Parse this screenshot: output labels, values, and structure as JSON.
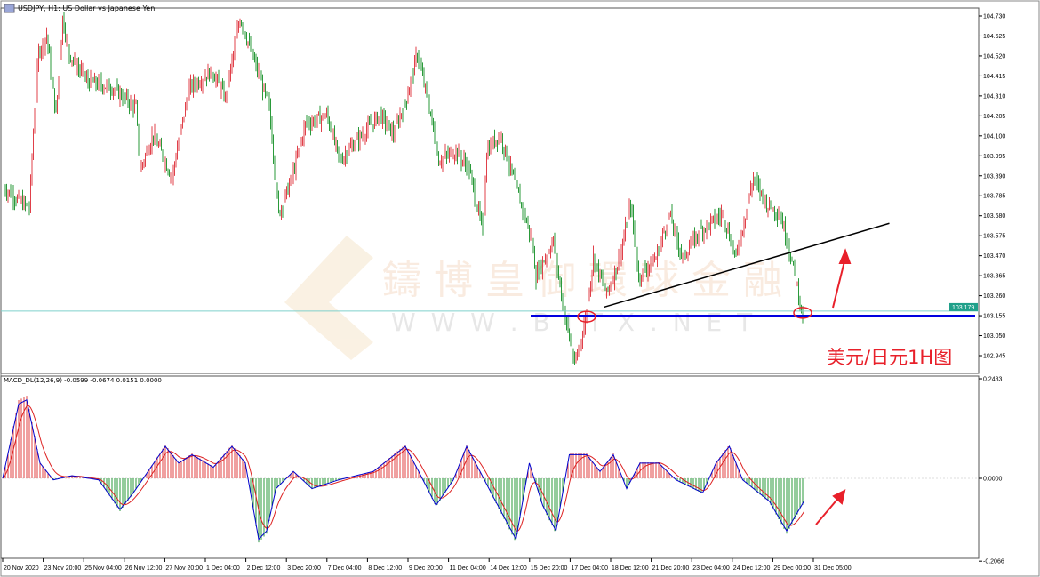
{
  "header": {
    "title": "USDJPY, H1:  US Dollar vs Japanese Yen",
    "icon": "chart-window-icon"
  },
  "watermark": {
    "text": "鑄博皇御環球金融",
    "url": "W W W . B I T X . N E T"
  },
  "annotation": {
    "text": "美元/日元1H图",
    "color": "#e8202a"
  },
  "chart_data": [
    {
      "type": "candlestick",
      "symbol": "USDJPY",
      "timeframe": "H1",
      "ylim": [
        102.89,
        104.76
      ],
      "y_ticks": [
        "104.730",
        "104.625",
        "104.520",
        "104.415",
        "104.310",
        "104.205",
        "104.100",
        "103.995",
        "103.890",
        "103.785",
        "103.680",
        "103.575",
        "103.470",
        "103.365",
        "103.260",
        "103.155",
        "103.050",
        "102.945"
      ],
      "current_price": "103.179",
      "current_price_color": "#20a08a",
      "x_ticks": [
        "20 Nov 2020",
        "23 Nov 20:00",
        "25 Nov 04:00",
        "26 Nov 12:00",
        "27 Nov 20:00",
        "1 Dec 04:00",
        "2 Dec 12:00",
        "3 Dec 20:00",
        "7 Dec 04:00",
        "8 Dec 12:00",
        "9 Dec 20:00",
        "11 Dec 04:00",
        "14 Dec 12:00",
        "15 Dec 20:00",
        "17 Dec 04:00",
        "18 Dec 12:00",
        "21 Dec 20:00",
        "23 Dec 04:00",
        "24 Dec 12:00",
        "29 Dec 00:00",
        "31 Dec 05:00"
      ],
      "up_color": "#e0404a",
      "down_color": "#2a9a3a",
      "close_path_bar_price": [
        [
          0,
          103.83
        ],
        [
          20,
          103.72
        ],
        [
          23,
          104.12
        ],
        [
          27,
          104.54
        ],
        [
          33,
          104.63
        ],
        [
          40,
          104.21
        ],
        [
          45,
          104.72
        ],
        [
          50,
          104.53
        ],
        [
          63,
          104.39
        ],
        [
          83,
          104.35
        ],
        [
          100,
          104.25
        ],
        [
          103,
          103.92
        ],
        [
          113,
          104.11
        ],
        [
          127,
          103.88
        ],
        [
          133,
          104.11
        ],
        [
          140,
          104.35
        ],
        [
          157,
          104.44
        ],
        [
          167,
          104.3
        ],
        [
          178,
          104.72
        ],
        [
          187,
          104.53
        ],
        [
          200,
          104.25
        ],
        [
          207,
          103.69
        ],
        [
          217,
          103.88
        ],
        [
          227,
          104.16
        ],
        [
          243,
          104.21
        ],
        [
          253,
          103.97
        ],
        [
          270,
          104.11
        ],
        [
          283,
          104.21
        ],
        [
          293,
          104.11
        ],
        [
          303,
          104.3
        ],
        [
          311,
          104.53
        ],
        [
          320,
          104.25
        ],
        [
          327,
          103.97
        ],
        [
          340,
          104.02
        ],
        [
          350,
          103.92
        ],
        [
          360,
          103.6
        ],
        [
          363,
          104.02
        ],
        [
          373,
          104.11
        ],
        [
          383,
          103.88
        ],
        [
          397,
          103.55
        ],
        [
          400,
          103.36
        ],
        [
          413,
          103.55
        ],
        [
          420,
          103.22
        ],
        [
          429,
          102.89
        ],
        [
          437,
          103.13
        ],
        [
          443,
          103.46
        ],
        [
          453,
          103.27
        ],
        [
          463,
          103.46
        ],
        [
          471,
          103.74
        ],
        [
          477,
          103.36
        ],
        [
          490,
          103.46
        ],
        [
          500,
          103.69
        ],
        [
          510,
          103.46
        ],
        [
          523,
          103.6
        ],
        [
          540,
          103.69
        ],
        [
          550,
          103.46
        ],
        [
          563,
          103.88
        ],
        [
          573,
          103.74
        ],
        [
          583,
          103.69
        ],
        [
          590,
          103.5
        ],
        [
          597,
          103.27
        ],
        [
          601,
          103.1
        ]
      ],
      "horizontal_lines": [
        {
          "price": 103.179,
          "color": "#7fd0cc"
        },
        {
          "price": 103.155,
          "color": "#0000e0",
          "from_bar": 396
        }
      ],
      "trendline": {
        "from": [
          451,
          103.2
        ],
        "to": [
          665,
          103.64
        ],
        "color": "#000000"
      },
      "circles": [
        {
          "bar": 438,
          "price": 103.15
        },
        {
          "bar": 600,
          "price": 103.17
        }
      ]
    },
    {
      "type": "macd",
      "label": "MACD_DL(12,26,9) -0.0599 -0.0674 0.0151 0.0000",
      "ylim": [
        -0.2066,
        0.2483
      ],
      "y_ticks": [
        "0.2483",
        "0.0000",
        "-0.2066"
      ],
      "main_color": "#0000cc",
      "signal_color": "#dd2222",
      "hist_up_color": "#e04040",
      "hist_down_color": "#2a9a3a",
      "main_path_bar_value": [
        [
          0,
          0.0
        ],
        [
          12,
          0.195
        ],
        [
          18,
          0.206
        ],
        [
          28,
          0.04
        ],
        [
          38,
          -0.004
        ],
        [
          52,
          0.007
        ],
        [
          72,
          -0.004
        ],
        [
          88,
          -0.082
        ],
        [
          98,
          -0.038
        ],
        [
          122,
          0.084
        ],
        [
          132,
          0.04
        ],
        [
          142,
          0.062
        ],
        [
          158,
          0.029
        ],
        [
          172,
          0.084
        ],
        [
          182,
          0.04
        ],
        [
          192,
          -0.16
        ],
        [
          198,
          -0.138
        ],
        [
          205,
          -0.027
        ],
        [
          218,
          0.018
        ],
        [
          232,
          -0.027
        ],
        [
          252,
          -0.004
        ],
        [
          278,
          0.018
        ],
        [
          302,
          0.084
        ],
        [
          312,
          0.018
        ],
        [
          325,
          -0.071
        ],
        [
          338,
          -0.004
        ],
        [
          348,
          0.084
        ],
        [
          358,
          0.018
        ],
        [
          368,
          -0.049
        ],
        [
          385,
          -0.16
        ],
        [
          395,
          0.04
        ],
        [
          405,
          -0.071
        ],
        [
          415,
          -0.138
        ],
        [
          425,
          0.062
        ],
        [
          438,
          0.062
        ],
        [
          448,
          0.018
        ],
        [
          458,
          0.062
        ],
        [
          468,
          -0.027
        ],
        [
          478,
          0.04
        ],
        [
          492,
          0.04
        ],
        [
          505,
          -0.004
        ],
        [
          525,
          -0.038
        ],
        [
          535,
          0.04
        ],
        [
          545,
          0.084
        ],
        [
          555,
          -0.004
        ],
        [
          575,
          -0.06
        ],
        [
          588,
          -0.138
        ],
        [
          601,
          -0.06
        ]
      ]
    }
  ]
}
